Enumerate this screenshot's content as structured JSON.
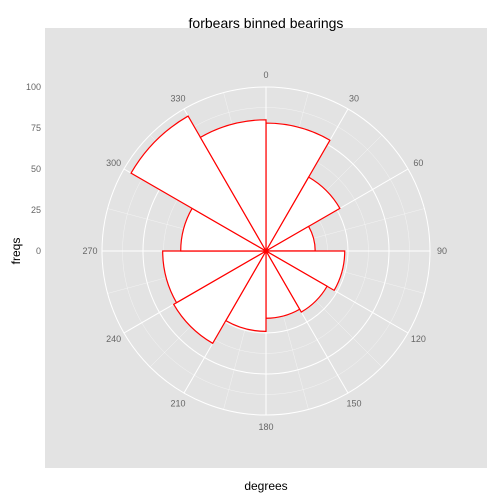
{
  "chart_data": {
    "type": "bar",
    "coord": "polar",
    "title": "forbears binned bearings",
    "xlabel": "degrees",
    "ylabel": "freqs",
    "categories": [
      "0",
      "30",
      "60",
      "90",
      "120",
      "150",
      "180",
      "210",
      "240",
      "270",
      "300",
      "330"
    ],
    "bin_start_degrees": [
      0,
      30,
      60,
      90,
      120,
      150,
      180,
      210,
      240,
      270,
      300,
      330
    ],
    "values": [
      78,
      52,
      30,
      48,
      43,
      41,
      49,
      65,
      63,
      52,
      95,
      80
    ],
    "angle_ticks": [
      "0",
      "30",
      "60",
      "90",
      "120",
      "150",
      "180",
      "210",
      "240",
      "270",
      "300",
      "330"
    ],
    "radius_ticks": [
      "0",
      "25",
      "50",
      "75",
      "100"
    ],
    "radius_tick_values": [
      0,
      25,
      50,
      75,
      100
    ],
    "ylim": [
      0,
      100
    ],
    "grid": true,
    "colors": {
      "panel": "#e3e3e3",
      "grid": "#ffffff",
      "bar_fill": "#ffffff",
      "bar_outline": "#ff0000",
      "tick_text": "#666666"
    }
  }
}
